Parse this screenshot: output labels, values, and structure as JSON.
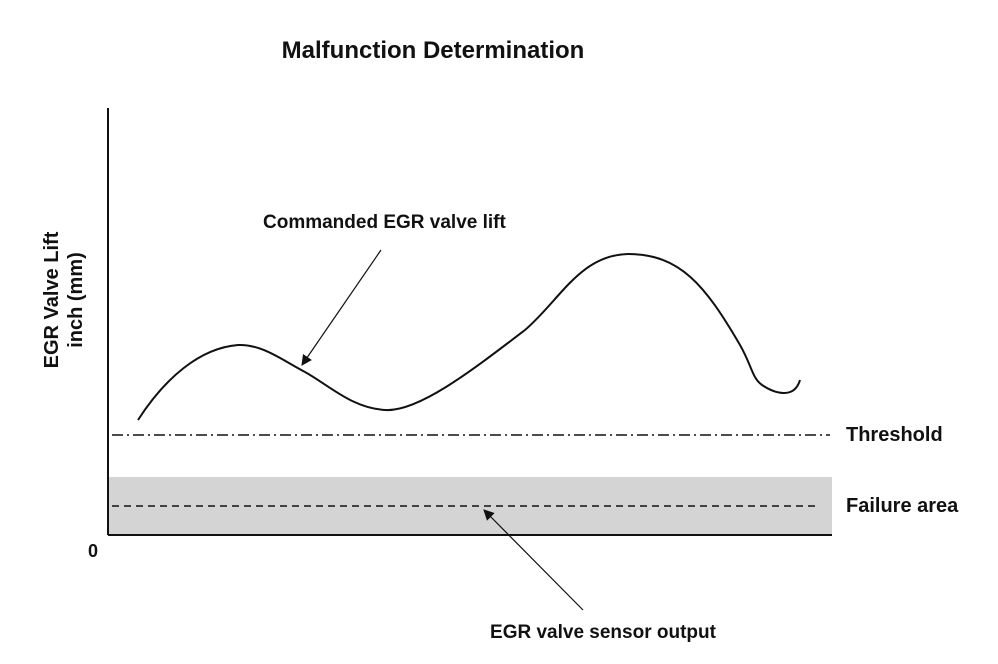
{
  "title": "Malfunction Determination",
  "y_axis": {
    "line1": "EGR Valve Lift",
    "line2": "inch (mm)",
    "origin_label": "0"
  },
  "annotations": {
    "commanded": "Commanded EGR valve lift",
    "threshold": "Threshold",
    "failure_area": "Failure area",
    "sensor_output": "EGR valve sensor output"
  },
  "colors": {
    "ink": "#111111",
    "failure_fill": "#d4d4d4",
    "background": "#ffffff"
  }
}
